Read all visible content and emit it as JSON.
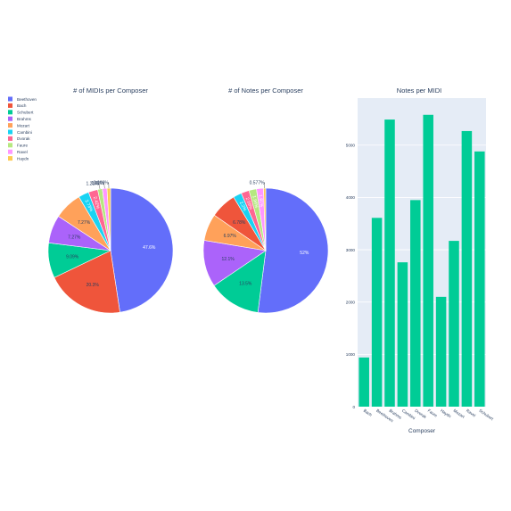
{
  "colors": [
    "#636efa",
    "#EF553B",
    "#00cc96",
    "#ab63fa",
    "#FFA15A",
    "#19d3f3",
    "#FF6692",
    "#B6E880",
    "#FF97FF",
    "#FECB52"
  ],
  "legend": {
    "placement": "top-left",
    "items": [
      "Beethoven",
      "Bach",
      "Schubert",
      "Brahms",
      "Mozart",
      "Cambini",
      "Dvorak",
      "Faure",
      "Ravel",
      "Haydn"
    ]
  },
  "chart_data": [
    {
      "type": "pie",
      "title": "# of MIDIs per Composer",
      "labels": [
        "Beethoven",
        "Bach",
        "Schubert",
        "Brahms",
        "Mozart",
        "Cambini",
        "Dvorak",
        "Faure",
        "Ravel",
        "Haydn"
      ],
      "values": [
        47.6,
        20.3,
        9.09,
        7.27,
        7.27,
        2.73,
        2.42,
        1.21,
        1.21,
        0.909
      ],
      "text_labels": [
        "47.6%",
        "20.3%",
        "9.09%",
        "7.27%",
        "7.27%",
        "2.73%",
        "2.42%",
        "1.21%",
        "1.21%",
        "0.909%"
      ]
    },
    {
      "type": "pie",
      "title": "# of Notes per Composer",
      "labels": [
        "Beethoven",
        "Schubert",
        "Brahms",
        "Mozart",
        "Bach",
        "Cambini",
        "Dvorak",
        "Faure",
        "Ravel",
        "Haydn"
      ],
      "values": [
        52,
        13.5,
        12.1,
        6.97,
        6.78,
        2.2,
        2.09,
        1.94,
        1.81,
        0.577
      ],
      "text_labels": [
        "52%",
        "13.5%",
        "12.1%",
        "6.97%",
        "6.78%",
        "2.2%",
        "2.09%",
        "1.94%",
        "1.81%",
        "0.577%"
      ]
    },
    {
      "type": "bar",
      "title": "Notes per MIDI",
      "xlabel": "Composer",
      "ylabel": "",
      "categories": [
        "Bach",
        "Beethoven",
        "Brahms",
        "Cambini",
        "Dvorak",
        "Faure",
        "Haydn",
        "Mozart",
        "Ravel",
        "Schubert"
      ],
      "values": [
        940,
        3610,
        5490,
        2760,
        3950,
        5580,
        2100,
        3170,
        5270,
        4880
      ],
      "ylim": [
        0,
        5900
      ],
      "yticks": [
        0,
        1000,
        2000,
        3000,
        4000,
        5000
      ],
      "grid": true,
      "color": "#00cc96"
    }
  ]
}
